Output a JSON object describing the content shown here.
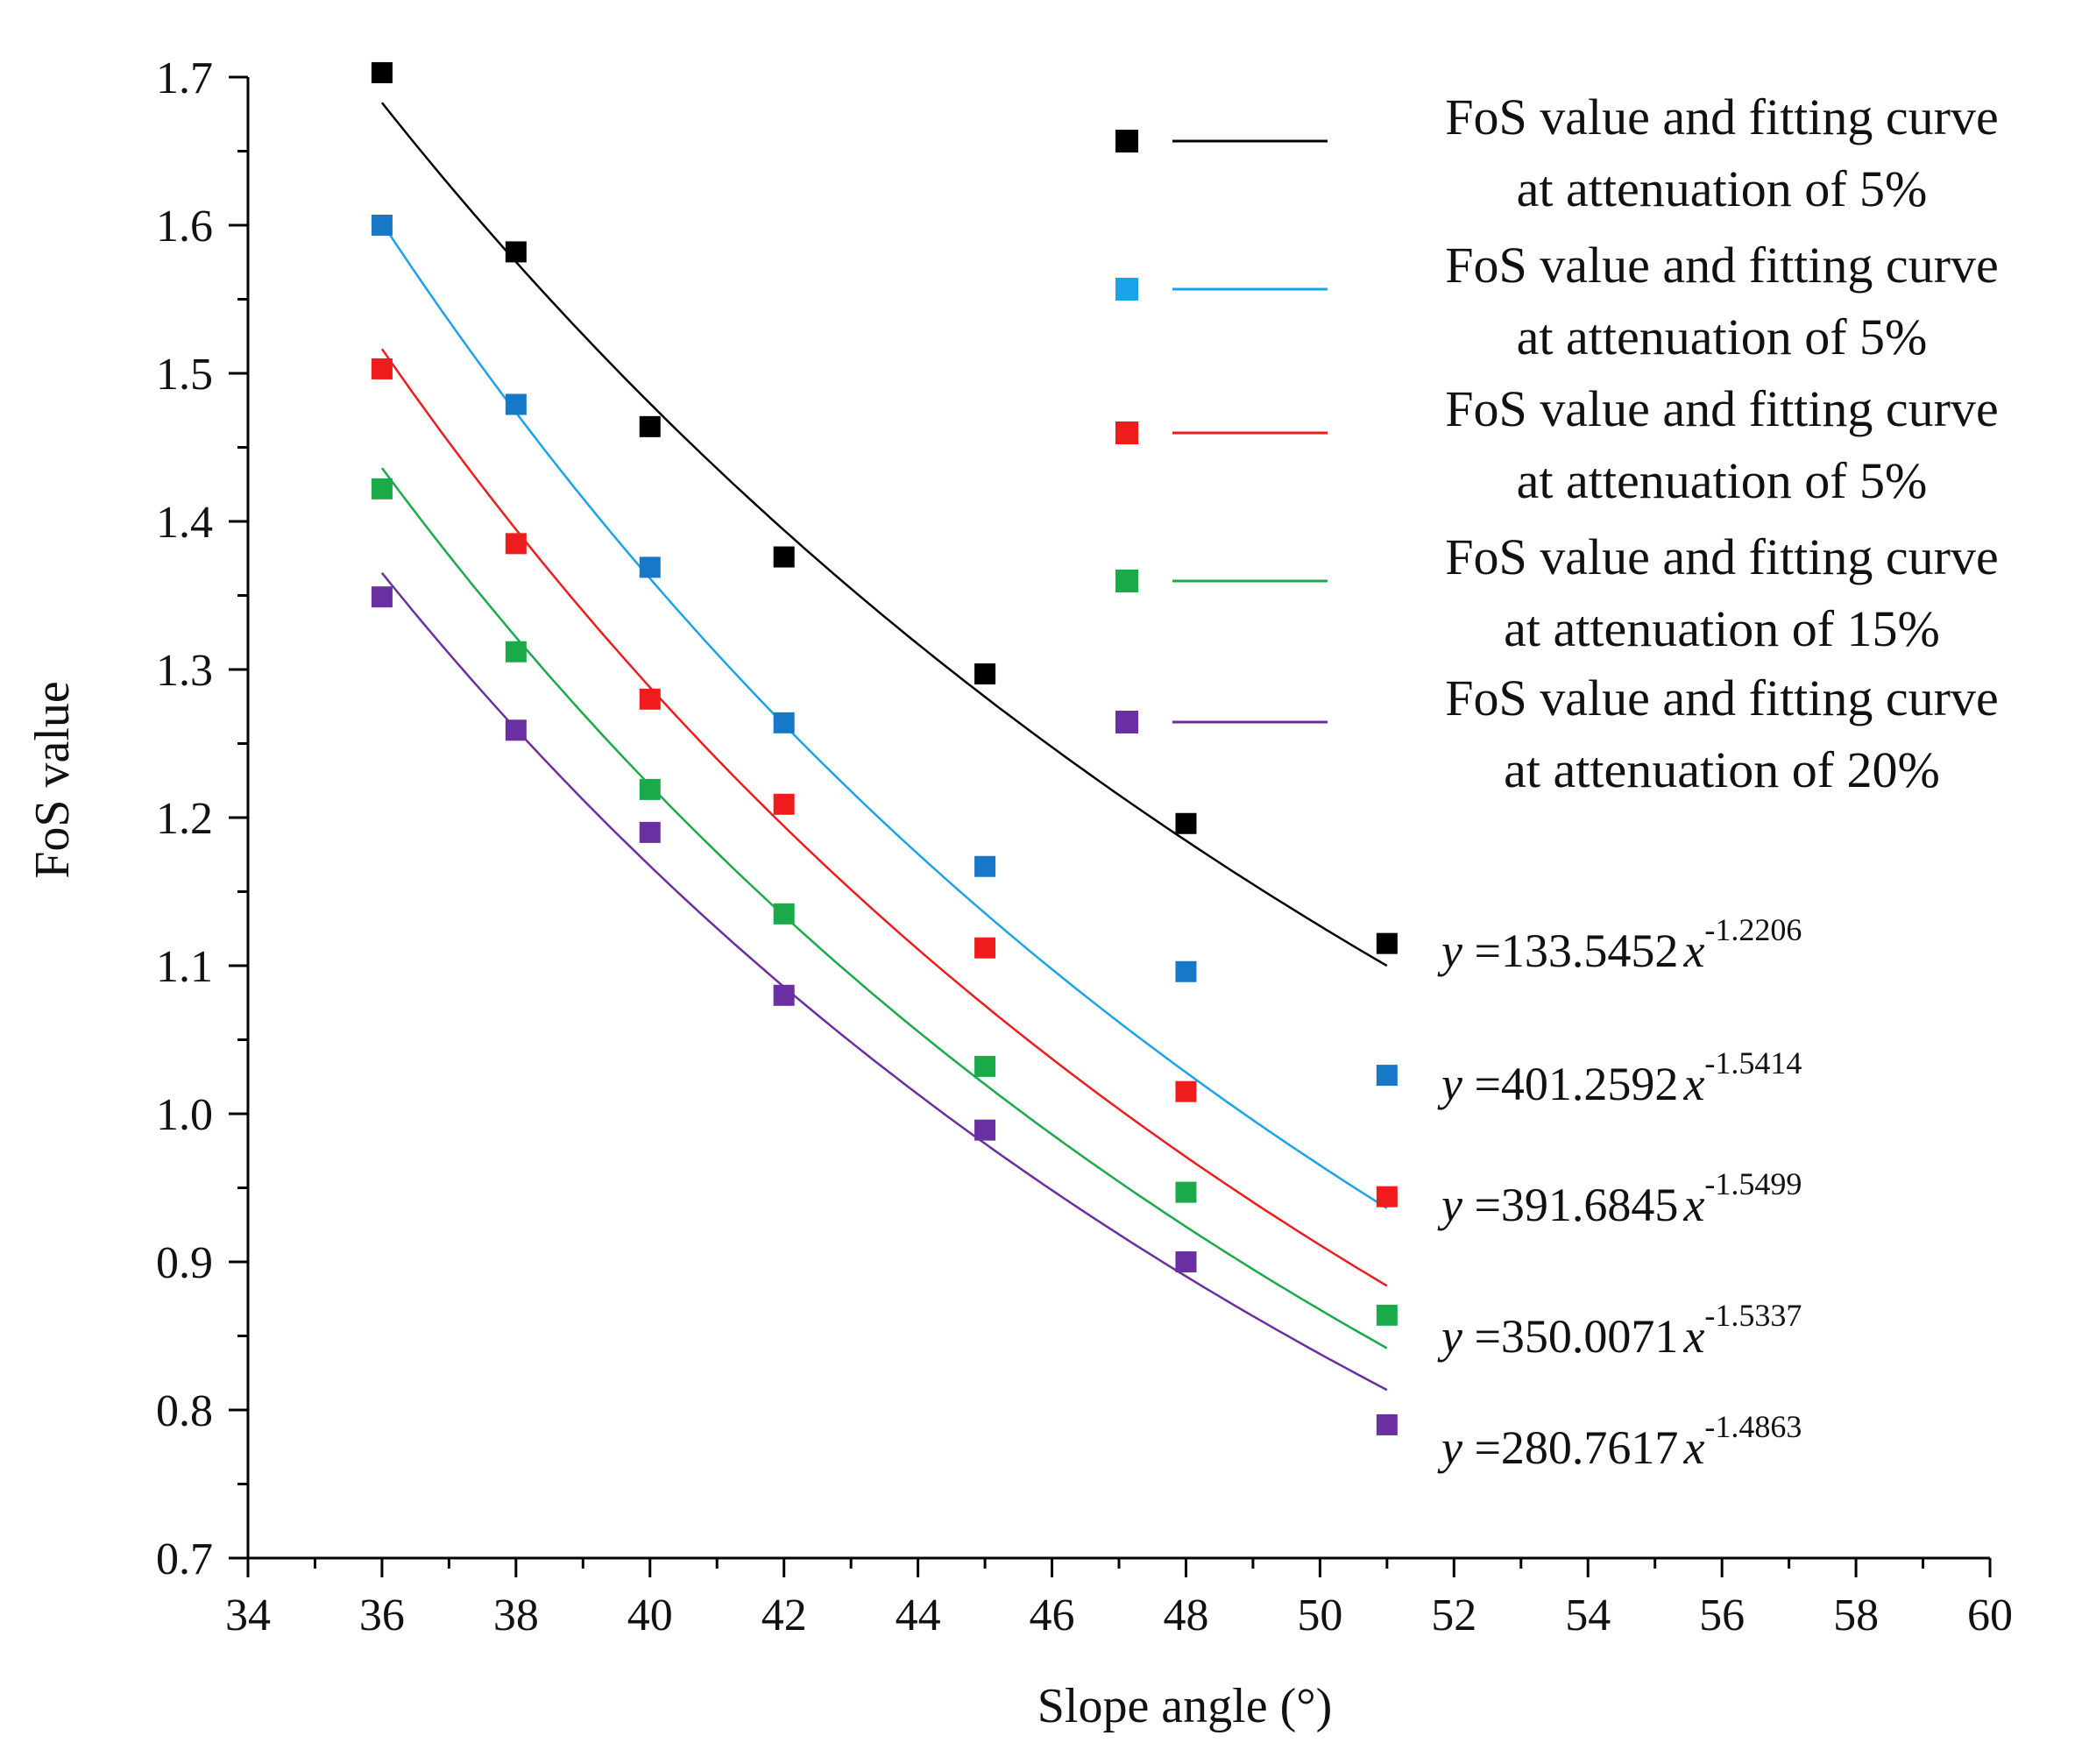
{
  "chart_data": {
    "type": "scatter",
    "title": "",
    "xlabel": "Slope angle (°)",
    "ylabel": "FoS value",
    "xlim": [
      34,
      60
    ],
    "ylim": [
      0.7,
      1.7
    ],
    "xticks": [
      "34",
      "36",
      "38",
      "40",
      "42",
      "44",
      "46",
      "48",
      "50",
      "52",
      "54",
      "56",
      "58",
      "60"
    ],
    "yticks": [
      "0.7",
      "0.8",
      "0.9",
      "1.0",
      "1.1",
      "1.2",
      "1.3",
      "1.4",
      "1.5",
      "1.6",
      "1.7"
    ],
    "series": [
      {
        "name": "FoS value and fitting curve at attenuation of 5%",
        "legend_line1": "FoS value and fitting curve",
        "legend_line2": "at attenuation of 5%",
        "color": "#000000",
        "x": [
          36,
          38,
          40,
          42,
          45,
          48,
          51
        ],
        "y": [
          1.703,
          1.582,
          1.464,
          1.376,
          1.297,
          1.196,
          1.115
        ],
        "fit": {
          "a": 133.5452,
          "b": -1.2206,
          "x_range": [
            36,
            51
          ]
        },
        "eq_prefix": "y",
        "eq_coef": " =133.5452",
        "eq_var": "x",
        "eq_exp": "-1.2206"
      },
      {
        "name": "FoS value and fitting curve at attenuation of 5%",
        "legend_line1": "FoS value and fitting curve",
        "legend_line2": "at attenuation of 5%",
        "color": "#1aa3e8",
        "marker_color": "#1878c8",
        "x": [
          36,
          38,
          40,
          42,
          45,
          48,
          51
        ],
        "y": [
          1.6,
          1.479,
          1.369,
          1.264,
          1.167,
          1.096,
          1.026
        ],
        "fit": {
          "a": 401.2592,
          "b": -1.5414,
          "x_range": [
            36,
            51
          ]
        },
        "eq_prefix": "y",
        "eq_coef": " =401.2592",
        "eq_var": "x",
        "eq_exp": "-1.5414"
      },
      {
        "name": "FoS value and fitting curve at attenuation of 5%",
        "legend_line1": "FoS value and fitting curve",
        "legend_line2": "at attenuation of 5%",
        "color": "#ee1c1c",
        "x": [
          36,
          38,
          40,
          42,
          45,
          48,
          51
        ],
        "y": [
          1.503,
          1.385,
          1.28,
          1.209,
          1.112,
          1.015,
          0.944
        ],
        "fit": {
          "a": 391.6845,
          "b": -1.5499,
          "x_range": [
            36,
            51
          ]
        },
        "eq_prefix": "y",
        "eq_coef": " =391.6845",
        "eq_var": "x",
        "eq_exp": "-1.5499"
      },
      {
        "name": "FoS value and fitting curve at attenuation of 15%",
        "legend_line1": "FoS value and fitting curve",
        "legend_line2": "at attenuation of 15%",
        "color": "#1aaa4a",
        "x": [
          36,
          38,
          40,
          42,
          45,
          48,
          51
        ],
        "y": [
          1.422,
          1.312,
          1.219,
          1.135,
          1.032,
          0.947,
          0.864
        ],
        "fit": {
          "a": 350.0071,
          "b": -1.5337,
          "x_range": [
            36,
            51
          ]
        },
        "eq_prefix": "y",
        "eq_coef": " =350.0071",
        "eq_var": "x",
        "eq_exp": "-1.5337"
      },
      {
        "name": "FoS value and fitting curve at attenuation of 20%",
        "legend_line1": "FoS value and fitting curve",
        "legend_line2": "at attenuation of 20%",
        "color": "#6a2fa0",
        "x": [
          36,
          38,
          40,
          42,
          45,
          48,
          51
        ],
        "y": [
          1.349,
          1.259,
          1.19,
          1.08,
          0.989,
          0.9,
          0.79
        ],
        "fit": {
          "a": 280.7617,
          "b": -1.4863,
          "x_range": [
            36,
            51
          ]
        },
        "eq_prefix": "y",
        "eq_coef": " =280.7617",
        "eq_var": "x",
        "eq_exp": "-1.4863"
      }
    ],
    "legend_position": "top-right",
    "grid": false
  }
}
